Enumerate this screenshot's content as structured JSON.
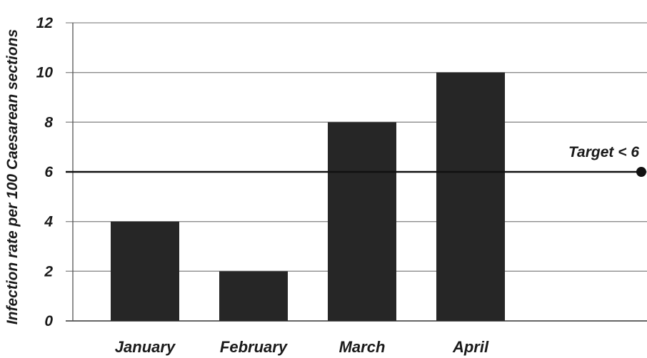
{
  "chart_data": {
    "type": "bar",
    "categories": [
      "January",
      "February",
      "March",
      "April"
    ],
    "values": [
      4,
      2,
      8,
      10
    ],
    "title": "",
    "xlabel": "",
    "ylabel": "Infection rate per 100 Caesarean sections",
    "ylim": [
      0,
      12
    ],
    "yticks": [
      0,
      2,
      4,
      6,
      8,
      10,
      12
    ],
    "grid": true,
    "target": {
      "value": 6,
      "label": "Target < 6"
    },
    "colors": {
      "bar": "#262626",
      "grid": "#8c8c8c",
      "target_line": "#111111",
      "text": "#1a1a1a"
    }
  }
}
